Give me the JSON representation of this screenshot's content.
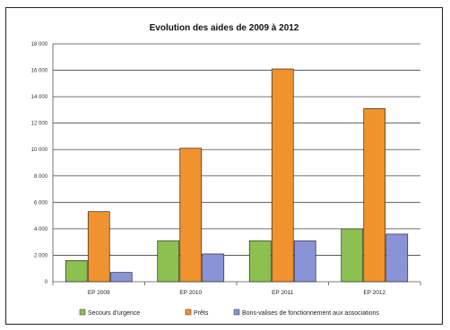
{
  "chart_data": {
    "type": "bar",
    "title": "Evolution des aides de 2009 à 2012",
    "categories": [
      "EP 2009",
      "EP 2010",
      "EP 2011",
      "EP 2012"
    ],
    "series": [
      {
        "name": "Secours d'urgence",
        "color": "#8cc152",
        "values": [
          1600,
          3100,
          3100,
          4000
        ]
      },
      {
        "name": "Prêts",
        "color": "#f0922e",
        "values": [
          5300,
          10100,
          16100,
          13100
        ]
      },
      {
        "name": "Bons-valises de fonctionnement aux associations",
        "color": "#8b93d8",
        "values": [
          700,
          2100,
          3100,
          3600
        ]
      }
    ],
    "ylim": [
      0,
      18000
    ],
    "yticks": [
      "0",
      "2 000",
      "4 000",
      "6 000",
      "8 000",
      "10 000",
      "12 000",
      "14 000",
      "16 000",
      "18 000"
    ],
    "grid": true,
    "legend_position": "bottom"
  }
}
